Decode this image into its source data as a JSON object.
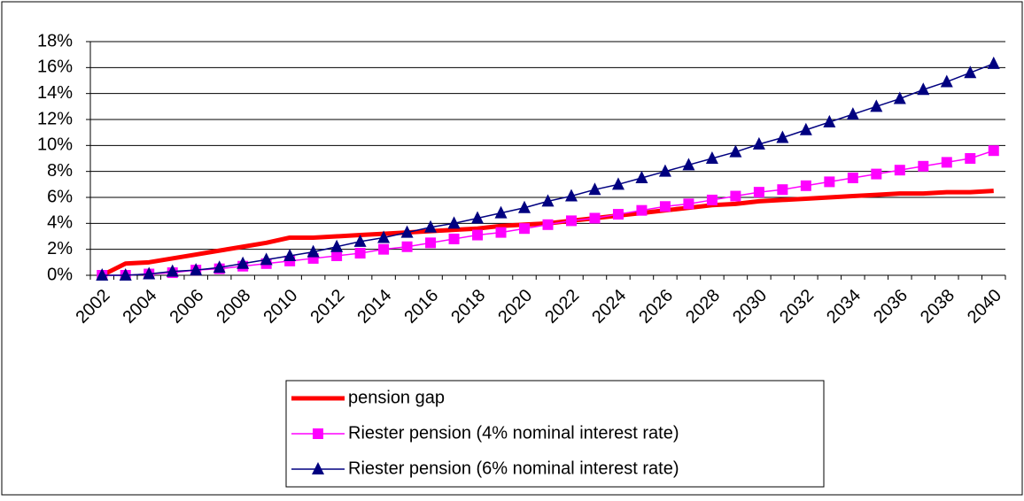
{
  "chart_data": {
    "type": "line",
    "categories": [
      "2002",
      null,
      "2004",
      null,
      "2006",
      null,
      "2008",
      null,
      "2010",
      null,
      "2012",
      null,
      "2014",
      null,
      "2016",
      null,
      "2018",
      null,
      "2020",
      null,
      "2022",
      null,
      "2024",
      null,
      "2026",
      null,
      "2028",
      null,
      "2030",
      null,
      "2032",
      null,
      "2034",
      null,
      "2036",
      null,
      "2038",
      null,
      "2040"
    ],
    "series": [
      {
        "name": "pension gap",
        "color": "#ff0000",
        "marker": "none",
        "width": 5,
        "values": [
          0,
          0.9,
          1.0,
          1.3,
          1.6,
          1.9,
          2.2,
          2.5,
          2.9,
          2.9,
          3.0,
          3.1,
          3.2,
          3.3,
          3.4,
          3.5,
          3.6,
          3.8,
          3.9,
          4.0,
          4.2,
          4.4,
          4.6,
          4.8,
          5.0,
          5.2,
          5.4,
          5.5,
          5.7,
          5.8,
          5.9,
          6.0,
          6.1,
          6.2,
          6.3,
          6.3,
          6.4,
          6.4,
          6.5
        ]
      },
      {
        "name": "Riester pension (4% nominal interest rate)",
        "color": "#ff00ff",
        "marker": "square",
        "width": 1.5,
        "values": [
          0,
          0,
          0.1,
          0.2,
          0.4,
          0.5,
          0.7,
          0.9,
          1.1,
          1.3,
          1.5,
          1.7,
          2.0,
          2.2,
          2.5,
          2.8,
          3.1,
          3.3,
          3.6,
          3.9,
          4.2,
          4.4,
          4.7,
          5.0,
          5.3,
          5.5,
          5.8,
          6.1,
          6.4,
          6.6,
          6.9,
          7.2,
          7.5,
          7.8,
          8.1,
          8.4,
          8.7,
          9.0,
          9.6
        ]
      },
      {
        "name": "Riester pension (6% nominal interest rate)",
        "color": "#000080",
        "marker": "triangle",
        "width": 1.5,
        "values": [
          0,
          0,
          0.1,
          0.3,
          0.4,
          0.6,
          0.9,
          1.2,
          1.5,
          1.8,
          2.2,
          2.6,
          2.9,
          3.3,
          3.7,
          4.0,
          4.4,
          4.8,
          5.2,
          5.7,
          6.1,
          6.6,
          7.0,
          7.5,
          8.0,
          8.5,
          9.0,
          9.5,
          10.1,
          10.6,
          11.2,
          11.8,
          12.4,
          13.0,
          13.6,
          14.3,
          14.9,
          15.6,
          16.3
        ]
      }
    ],
    "ylim": [
      0,
      18
    ],
    "yticks": [
      {
        "value": 0,
        "label": "0%"
      },
      {
        "value": 2,
        "label": "2%"
      },
      {
        "value": 4,
        "label": "4%"
      },
      {
        "value": 6,
        "label": "6%"
      },
      {
        "value": 8,
        "label": "8%"
      },
      {
        "value": 10,
        "label": "10%"
      },
      {
        "value": 12,
        "label": "12%"
      },
      {
        "value": 14,
        "label": "14%"
      },
      {
        "value": 16,
        "label": "16%"
      },
      {
        "value": 18,
        "label": "18%"
      }
    ],
    "grid": true,
    "legend": "bottom"
  }
}
